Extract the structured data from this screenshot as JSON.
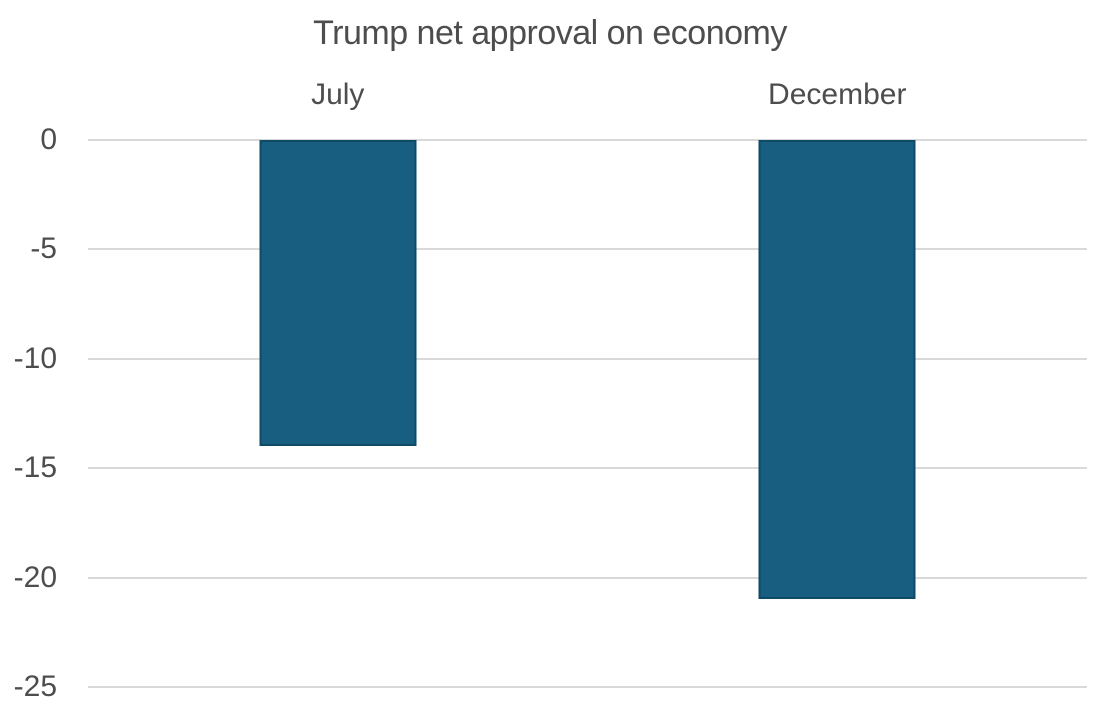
{
  "chart_data": {
    "type": "bar",
    "title": "Trump net approval on economy",
    "categories": [
      "July",
      "December"
    ],
    "values": [
      -14,
      -21
    ],
    "ylim": [
      -25,
      0
    ],
    "yticks": [
      0,
      -5,
      -10,
      -15,
      -20,
      -25
    ],
    "ytick_labels": [
      "0",
      "-5",
      "-10",
      "-15",
      "-20",
      "-25"
    ],
    "xlabel": "",
    "ylabel": "",
    "grid": true,
    "legend": false,
    "bar_color": "#175E80",
    "bar_border_color": "#0F4A66",
    "grid_color": "#D9D9D9",
    "text_color": "#4D4D4D",
    "background_color": "#FFFFFF"
  }
}
